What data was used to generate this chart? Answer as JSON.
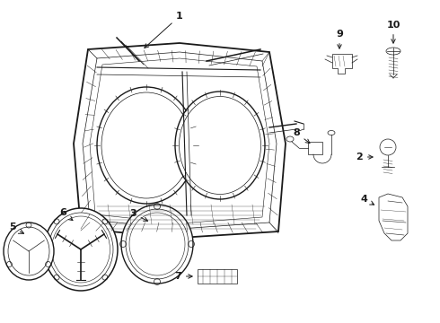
{
  "bg_color": "#ffffff",
  "line_color": "#1a1a1a",
  "fig_width": 4.9,
  "fig_height": 3.6,
  "dpi": 100,
  "lw_main": 1.0,
  "lw_thin": 0.5,
  "lw_detail": 0.4
}
